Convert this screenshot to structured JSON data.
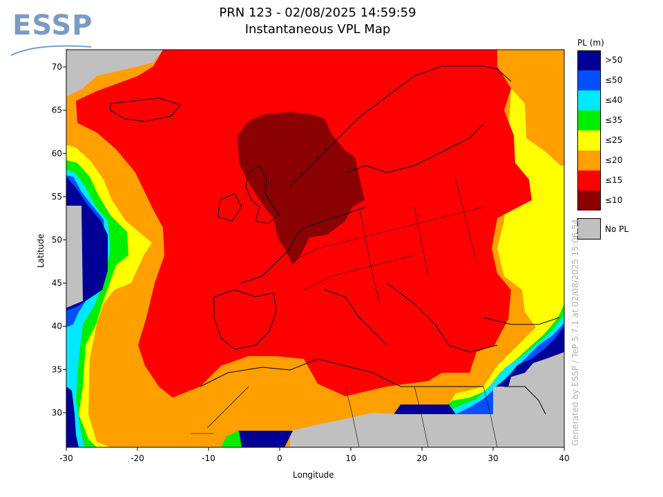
{
  "logo": {
    "text": "ESSP"
  },
  "title": {
    "line1": "PRN 123 - 02/08/2025 14:59:59",
    "line2": "Instantaneous VPL Map"
  },
  "axes": {
    "xlabel": "Longitude",
    "ylabel": "Latitude",
    "xticks": [
      "-30",
      "-20",
      "-10",
      "0",
      "10",
      "20",
      "30",
      "40"
    ],
    "yticks": [
      "70",
      "65",
      "60",
      "55",
      "50",
      "45",
      "40",
      "35",
      "30"
    ],
    "xrange": [
      -30,
      40
    ],
    "yrange": [
      26,
      72
    ]
  },
  "legend": {
    "title": "PL (m)",
    "items": [
      {
        "label": ">50",
        "color": "#000096"
      },
      {
        "label": "≤50",
        "color": "#0050ff"
      },
      {
        "label": "≤40",
        "color": "#00e8ff"
      },
      {
        "label": "≤35",
        "color": "#00ee00"
      },
      {
        "label": "≤25",
        "color": "#ffff00"
      },
      {
        "label": "≤20",
        "color": "#ffa000"
      },
      {
        "label": "≤15",
        "color": "#ff0000"
      },
      {
        "label": "≤10",
        "color": "#8b0000"
      }
    ],
    "nopl": {
      "label": "No PL",
      "color": "#c0c0c0"
    }
  },
  "side_text": "Generated by ESSP / TeP 5.7.1 at 02/08/2025 15:06:54"
}
